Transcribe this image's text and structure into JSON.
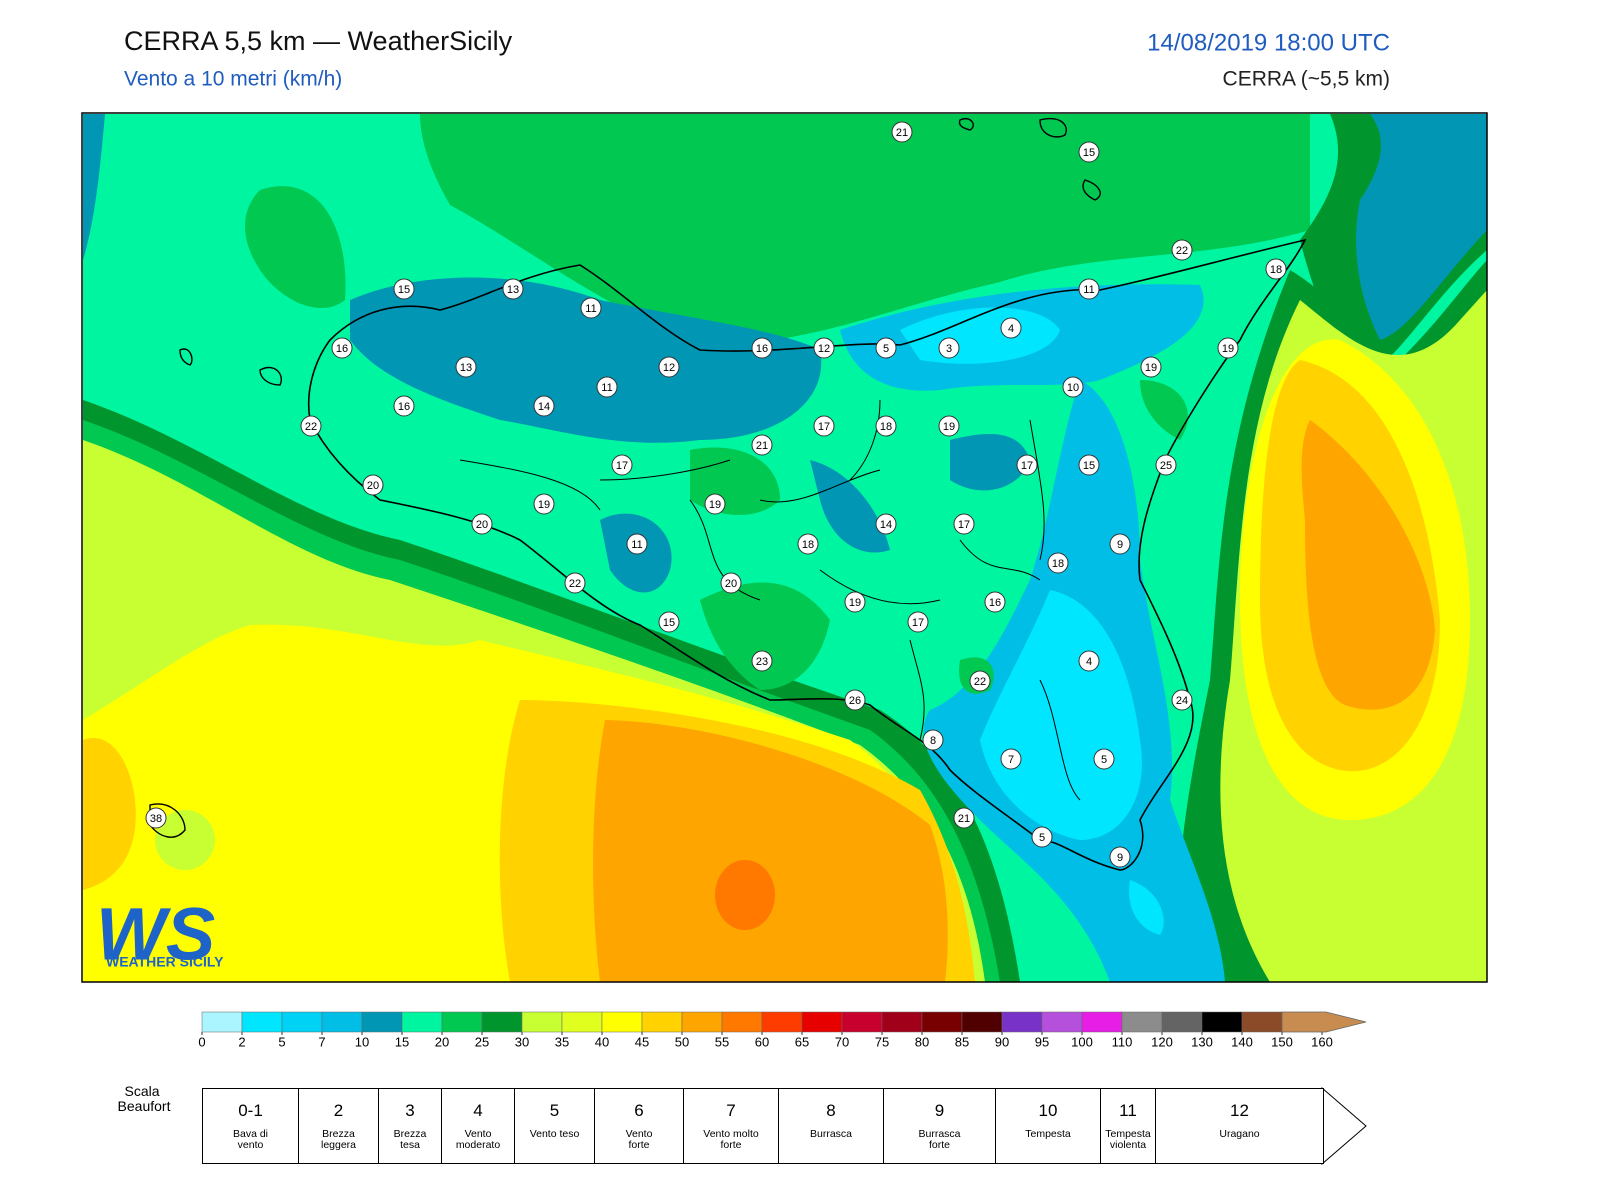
{
  "header": {
    "title": "CERRA 5,5 km — WeatherSicily",
    "subtitle": "Vento a 10 metri (km/h)",
    "datetime": "14/08/2019 18:00 UTC",
    "model": "CERRA (~5,5 km)"
  },
  "stations": [
    21,
    15,
    22,
    18,
    11,
    15,
    13,
    11,
    4,
    16,
    16,
    12,
    5,
    3,
    19,
    13,
    12,
    19,
    11,
    10,
    16,
    14,
    22,
    17,
    18,
    19,
    21,
    17,
    17,
    15,
    25,
    20,
    19,
    19,
    20,
    14,
    17,
    11,
    18,
    9,
    18,
    22,
    20,
    19,
    16,
    15,
    17,
    4,
    23,
    22,
    26,
    24,
    8,
    7,
    5,
    38,
    21,
    5,
    9
  ],
  "logo": {
    "mark": "WS",
    "name": "WEATHER SICILY"
  },
  "colorbar": {
    "ticks": [
      0,
      2,
      5,
      7,
      10,
      15,
      20,
      25,
      30,
      35,
      40,
      45,
      50,
      55,
      60,
      65,
      70,
      75,
      80,
      85,
      90,
      95,
      100,
      110,
      120,
      130,
      140,
      150,
      160
    ],
    "colors": [
      "#aaf5ff",
      "#00e6ff",
      "#00d2f5",
      "#00bee6",
      "#0096b4",
      "#00f5a0",
      "#00c850",
      "#00962d",
      "#c8ff32",
      "#e1ff1e",
      "#ffff00",
      "#ffd200",
      "#ffa500",
      "#ff7800",
      "#ff3c00",
      "#e60000",
      "#c8002d",
      "#a00019",
      "#780000",
      "#500000",
      "#7832c8",
      "#b450dc",
      "#e61ee6",
      "#8c8c8c",
      "#646464",
      "#000000",
      "#8c4b28",
      "#c88c50"
    ]
  },
  "beaufort": {
    "label": "Scala Beaufort",
    "levels": [
      {
        "force": "0-1",
        "name": "Bava di vento"
      },
      {
        "force": 2,
        "name": "Brezza leggera"
      },
      {
        "force": 3,
        "name": "Brezza tesa"
      },
      {
        "force": 4,
        "name": "Vento moderato"
      },
      {
        "force": 5,
        "name": "Vento teso"
      },
      {
        "force": 6,
        "name": "Vento forte"
      },
      {
        "force": 7,
        "name": "Vento molto forte"
      },
      {
        "force": 8,
        "name": "Burrasca"
      },
      {
        "force": 9,
        "name": "Burrasca forte"
      },
      {
        "force": 10,
        "name": "Tempesta"
      },
      {
        "force": 11,
        "name": "Tempesta violenta"
      },
      {
        "force": 12,
        "name": "Uragano"
      }
    ]
  }
}
